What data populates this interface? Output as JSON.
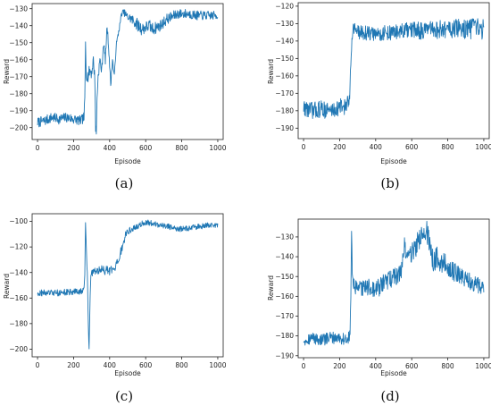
{
  "chart_data": [
    {
      "type": "line",
      "panel_label": "(a)",
      "xlabel": "Episode",
      "ylabel": "Reward",
      "xlim": [
        -30,
        1030
      ],
      "ylim": [
        -207,
        -127
      ],
      "xticks": [
        0,
        200,
        400,
        600,
        800,
        1000
      ],
      "yticks": [
        -200,
        -190,
        -180,
        -170,
        -160,
        -150,
        -140,
        -130
      ],
      "color": "#1f77b4",
      "series": [
        {
          "anchors": [
            [
              0,
              -197
            ],
            [
              40,
              -196
            ],
            [
              80,
              -194
            ],
            [
              120,
              -195
            ],
            [
              160,
              -194
            ],
            [
              200,
              -195
            ],
            [
              240,
              -196
            ],
            [
              258,
              -194
            ],
            [
              262,
              -185
            ],
            [
              266,
              -150
            ],
            [
              270,
              -168
            ],
            [
              280,
              -170
            ],
            [
              290,
              -166
            ],
            [
              300,
              -168
            ],
            [
              310,
              -160
            ],
            [
              318,
              -172
            ],
            [
              322,
              -200
            ],
            [
              326,
              -203
            ],
            [
              330,
              -182
            ],
            [
              336,
              -170
            ],
            [
              346,
              -160
            ],
            [
              356,
              -167
            ],
            [
              366,
              -150
            ],
            [
              376,
              -160
            ],
            [
              386,
              -140
            ],
            [
              396,
              -155
            ],
            [
              406,
              -175
            ],
            [
              416,
              -160
            ],
            [
              426,
              -170
            ],
            [
              436,
              -152
            ],
            [
              446,
              -146
            ],
            [
              456,
              -140
            ],
            [
              466,
              -133
            ],
            [
              476,
              -132
            ],
            [
              486,
              -133
            ],
            [
              500,
              -135
            ],
            [
              520,
              -136
            ],
            [
              540,
              -138
            ],
            [
              560,
              -140
            ],
            [
              580,
              -142
            ],
            [
              600,
              -141
            ],
            [
              620,
              -140
            ],
            [
              640,
              -142
            ],
            [
              660,
              -141
            ],
            [
              680,
              -140
            ],
            [
              700,
              -138
            ],
            [
              720,
              -136
            ],
            [
              740,
              -135
            ],
            [
              760,
              -134
            ],
            [
              780,
              -133
            ],
            [
              800,
              -133
            ],
            [
              840,
              -133
            ],
            [
              880,
              -134
            ],
            [
              920,
              -134
            ],
            [
              960,
              -134
            ],
            [
              1000,
              -134
            ]
          ],
          "noise": [
            [
              0,
              3
            ],
            [
              258,
              3
            ],
            [
              262,
              4
            ],
            [
              466,
              1.5
            ],
            [
              480,
              2
            ],
            [
              560,
              4
            ],
            [
              760,
              3
            ],
            [
              1000,
              2.5
            ]
          ]
        }
      ]
    },
    {
      "type": "line",
      "panel_label": "(b)",
      "xlabel": "Episode",
      "ylabel": "Reward",
      "xlim": [
        -30,
        1030
      ],
      "ylim": [
        -196,
        -118
      ],
      "xticks": [
        0,
        200,
        400,
        600,
        800,
        1000
      ],
      "yticks": [
        -190,
        -180,
        -170,
        -160,
        -150,
        -140,
        -130,
        -120
      ],
      "color": "#1f77b4",
      "series": [
        {
          "anchors": [
            [
              0,
              -178
            ],
            [
              50,
              -180
            ],
            [
              100,
              -179
            ],
            [
              150,
              -180
            ],
            [
              200,
              -178
            ],
            [
              240,
              -177
            ],
            [
              255,
              -175
            ],
            [
              262,
              -150
            ],
            [
              270,
              -135
            ],
            [
              280,
              -132
            ],
            [
              300,
              -135
            ],
            [
              400,
              -136
            ],
            [
              500,
              -135
            ],
            [
              600,
              -134
            ],
            [
              700,
              -134
            ],
            [
              800,
              -133
            ],
            [
              900,
              -133
            ],
            [
              1000,
              -133
            ]
          ],
          "noise": [
            [
              0,
              5
            ],
            [
              255,
              5
            ],
            [
              262,
              4
            ],
            [
              300,
              4
            ],
            [
              600,
              5
            ],
            [
              1000,
              6
            ]
          ]
        }
      ]
    },
    {
      "type": "line",
      "panel_label": "(c)",
      "xlabel": "Episode",
      "ylabel": "Reward",
      "xlim": [
        -30,
        1030
      ],
      "ylim": [
        -206,
        -94
      ],
      "xticks": [
        0,
        200,
        400,
        600,
        800,
        1000
      ],
      "yticks": [
        -200,
        -180,
        -160,
        -140,
        -120,
        -100
      ],
      "color": "#1f77b4",
      "series": [
        {
          "anchors": [
            [
              0,
              -156
            ],
            [
              100,
              -156
            ],
            [
              200,
              -155
            ],
            [
              250,
              -155
            ],
            [
              258,
              -152
            ],
            [
              262,
              -140
            ],
            [
              266,
              -102
            ],
            [
              270,
              -120
            ],
            [
              276,
              -140
            ],
            [
              282,
              -180
            ],
            [
              286,
              -202
            ],
            [
              290,
              -170
            ],
            [
              296,
              -140
            ],
            [
              320,
              -139
            ],
            [
              360,
              -138
            ],
            [
              400,
              -139
            ],
            [
              430,
              -138
            ],
            [
              450,
              -130
            ],
            [
              470,
              -120
            ],
            [
              490,
              -110
            ],
            [
              510,
              -107
            ],
            [
              540,
              -105
            ],
            [
              580,
              -102
            ],
            [
              600,
              -101
            ],
            [
              650,
              -102
            ],
            [
              700,
              -103
            ],
            [
              750,
              -105
            ],
            [
              800,
              -106
            ],
            [
              850,
              -105
            ],
            [
              900,
              -104
            ],
            [
              950,
              -103
            ],
            [
              1000,
              -103
            ]
          ],
          "noise": [
            [
              0,
              2.5
            ],
            [
              258,
              2.5
            ],
            [
              262,
              3
            ],
            [
              296,
              3
            ],
            [
              440,
              4
            ],
            [
              510,
              2.5
            ],
            [
              1000,
              2
            ]
          ]
        }
      ]
    },
    {
      "type": "line",
      "panel_label": "(d)",
      "xlabel": "Episode",
      "ylabel": "Reward",
      "xlim": [
        -30,
        1030
      ],
      "ylim": [
        -191,
        -121
      ],
      "xticks": [
        0,
        200,
        400,
        600,
        800,
        1000
      ],
      "yticks": [
        -190,
        -180,
        -170,
        -160,
        -150,
        -140,
        -130
      ],
      "color": "#1f77b4",
      "series": [
        {
          "anchors": [
            [
              0,
              -182
            ],
            [
              50,
              -181
            ],
            [
              100,
              -182
            ],
            [
              150,
              -181
            ],
            [
              200,
              -181
            ],
            [
              240,
              -182
            ],
            [
              258,
              -180
            ],
            [
              262,
              -160
            ],
            [
              266,
              -125
            ],
            [
              270,
              -150
            ],
            [
              280,
              -155
            ],
            [
              300,
              -157
            ],
            [
              350,
              -155
            ],
            [
              400,
              -157
            ],
            [
              450,
              -153
            ],
            [
              500,
              -150
            ],
            [
              540,
              -148
            ],
            [
              560,
              -135
            ],
            [
              580,
              -140
            ],
            [
              600,
              -138
            ],
            [
              620,
              -135
            ],
            [
              640,
              -132
            ],
            [
              660,
              -128
            ],
            [
              680,
              -126
            ],
            [
              700,
              -135
            ],
            [
              720,
              -142
            ],
            [
              740,
              -140
            ],
            [
              760,
              -142
            ],
            [
              800,
              -145
            ],
            [
              840,
              -148
            ],
            [
              880,
              -150
            ],
            [
              920,
              -152
            ],
            [
              960,
              -154
            ],
            [
              1000,
              -155
            ]
          ],
          "noise": [
            [
              0,
              3
            ],
            [
              258,
              3
            ],
            [
              262,
              4
            ],
            [
              540,
              5
            ],
            [
              700,
              6
            ],
            [
              1000,
              4
            ]
          ]
        }
      ]
    }
  ]
}
